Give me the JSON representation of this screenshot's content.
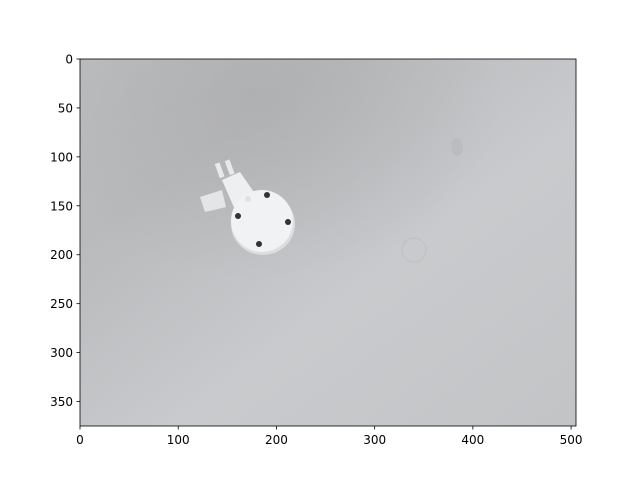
{
  "chart_data": {
    "type": "image",
    "xlim": [
      0,
      505
    ],
    "ylim": [
      375,
      0
    ],
    "xticks": [
      0,
      100,
      200,
      300,
      400,
      500
    ],
    "yticks": [
      0,
      50,
      100,
      150,
      200,
      250,
      300,
      350
    ]
  }
}
